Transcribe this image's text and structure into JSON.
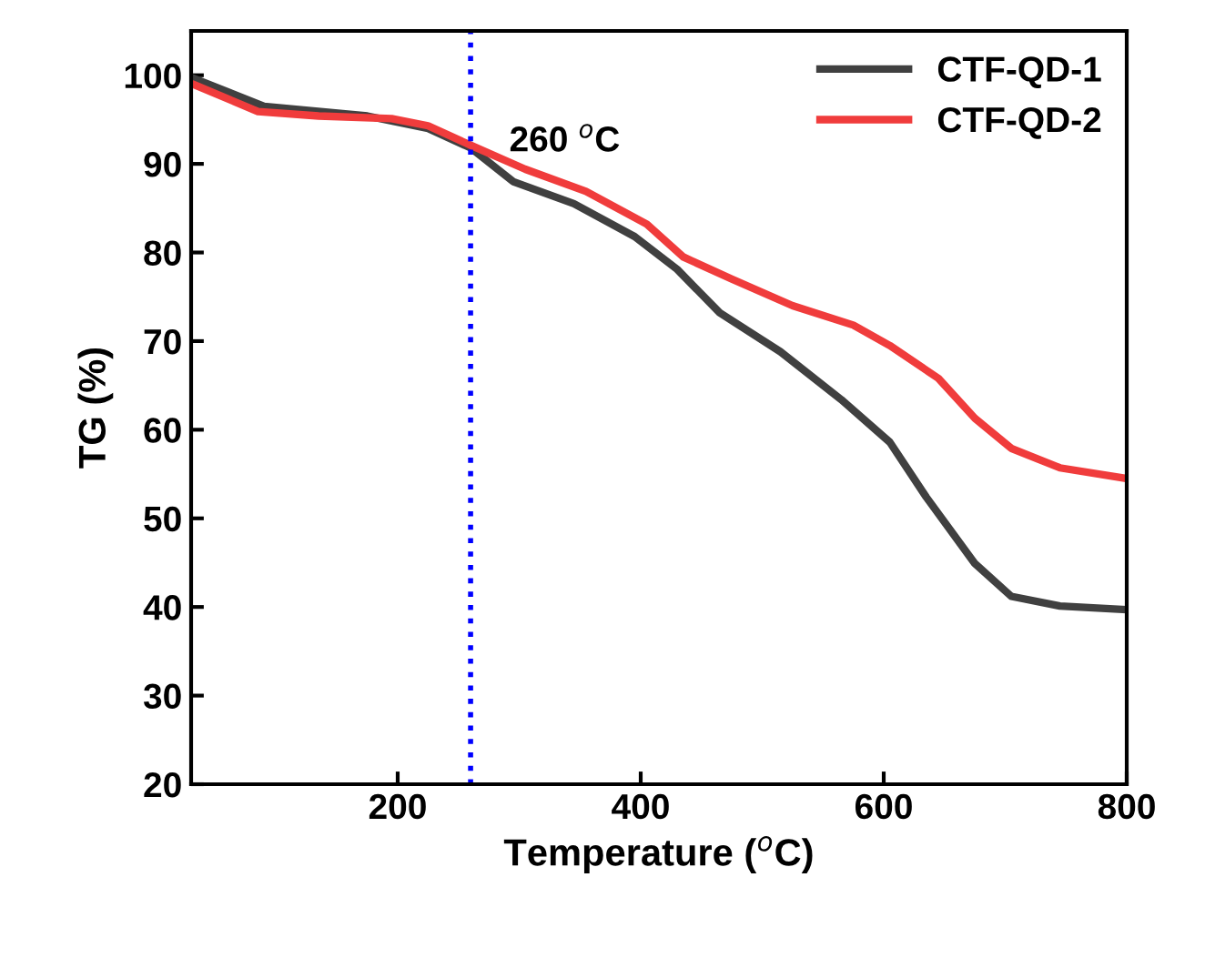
{
  "chart_data": {
    "type": "line",
    "xlabel": "Temperature ($^{o}$C)",
    "ylabel": "TG (%)",
    "xlim": [
      30,
      800
    ],
    "xticks": [
      200,
      400,
      600,
      800
    ],
    "ylim": [
      20,
      105
    ],
    "yticks": [
      20,
      30,
      40,
      50,
      60,
      70,
      80,
      90,
      100
    ],
    "legend": "top right",
    "grid": false,
    "line_style": "solid",
    "marker": "none",
    "annotations": [
      "260 $^{o}$C"
    ],
    "ref_lines": [
      {
        "axis": "x",
        "value": 260,
        "color": "#0000ff",
        "line_style": "dotted"
      }
    ],
    "series": [
      {
        "name": "CTF-QD-1",
        "color": "#404040",
        "x": [
          33,
          90,
          175,
          225,
          260,
          295,
          345,
          395,
          430,
          465,
          515,
          565,
          605,
          635,
          675,
          705,
          745,
          800
        ],
        "values": [
          99.6,
          96.5,
          95.4,
          94.0,
          91.8,
          88.0,
          85.5,
          81.8,
          78.1,
          73.2,
          68.8,
          63.4,
          58.6,
          52.4,
          44.9,
          41.2,
          40.1,
          39.7
        ]
      },
      {
        "name": "CTF-QD-2",
        "color": "#f03c3c",
        "x": [
          33,
          85,
          135,
          195,
          225,
          260,
          305,
          355,
          405,
          435,
          475,
          525,
          575,
          605,
          645,
          675,
          705,
          745,
          800
        ],
        "values": [
          98.9,
          95.9,
          95.4,
          95.1,
          94.3,
          92.1,
          89.4,
          86.9,
          83.2,
          79.5,
          77.0,
          74.0,
          71.8,
          69.5,
          65.8,
          61.3,
          57.9,
          55.7,
          54.5
        ]
      }
    ]
  }
}
